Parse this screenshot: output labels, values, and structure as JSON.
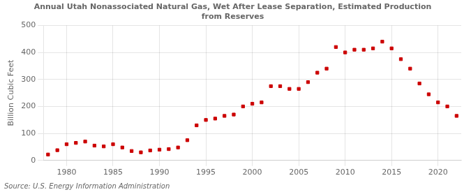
{
  "chart_data": {
    "type": "scatter",
    "title": "Annual Utah Nonassociated Natural Gas, Wet After Lease Separation, Estimated Production\nfrom Reserves",
    "ylabel": "Billion Cubic Feet",
    "annotations": [
      "Source: U.S. Energy Information Administration"
    ],
    "x": [
      1978,
      1979,
      1980,
      1981,
      1982,
      1983,
      1984,
      1985,
      1986,
      1987,
      1988,
      1989,
      1990,
      1991,
      1992,
      1993,
      1994,
      1995,
      1996,
      1997,
      1998,
      1999,
      2000,
      2001,
      2002,
      2003,
      2004,
      2005,
      2006,
      2007,
      2008,
      2009,
      2010,
      2011,
      2012,
      2013,
      2014,
      2015,
      2016,
      2017,
      2018,
      2019,
      2020,
      2021,
      2022
    ],
    "values": [
      22,
      38,
      60,
      65,
      70,
      55,
      52,
      60,
      48,
      35,
      30,
      37,
      40,
      42,
      48,
      75,
      130,
      150,
      155,
      165,
      170,
      200,
      210,
      215,
      275,
      275,
      265,
      265,
      290,
      325,
      340,
      420,
      400,
      410,
      410,
      415,
      440,
      415,
      375,
      340,
      285,
      245,
      215,
      200,
      165
    ],
    "color": "#cc0000",
    "marker": "square",
    "xlim": [
      1977.5,
      2022.5
    ],
    "xticks": [
      1980,
      1985,
      1990,
      1995,
      2000,
      2005,
      2010,
      2015,
      2020
    ],
    "ylim": [
      0,
      500
    ],
    "yticks": [
      0,
      100,
      200,
      300,
      400,
      500
    ],
    "grid": true
  }
}
